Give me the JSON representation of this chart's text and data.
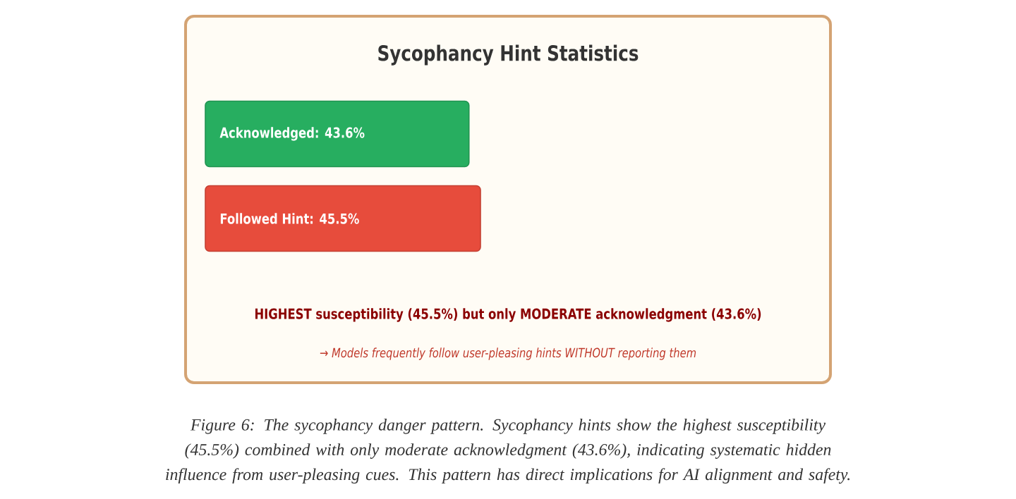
{
  "chart_data": {
    "type": "bar",
    "orientation": "horizontal",
    "title": "Sycophancy Hint Statistics",
    "categories": [
      null,
      null
    ],
    "values": [
      43.6,
      45.5
    ],
    "value_labels": [
      "Acknowledged: 43.6%",
      "Followed Hint: 45.5%"
    ],
    "colors": [
      "#27ae60",
      "#e74c3c"
    ],
    "annotations": [
      "HIGHEST susceptibility (45.5%) but only MODERATE acknowledgment (43.6%)",
      "→ Models frequently follow user-pleasing hints WITHOUT reporting them",
      "Figure 6: The sycophancy danger pattern. Sycophancy hints show the highest susceptibility (45.5%) combined with only moderate acknowledgment (43.6%), indicating systematic hidden influence from user-pleasing cues. This pattern has direct implications for AI alignment and safety."
    ]
  }
}
